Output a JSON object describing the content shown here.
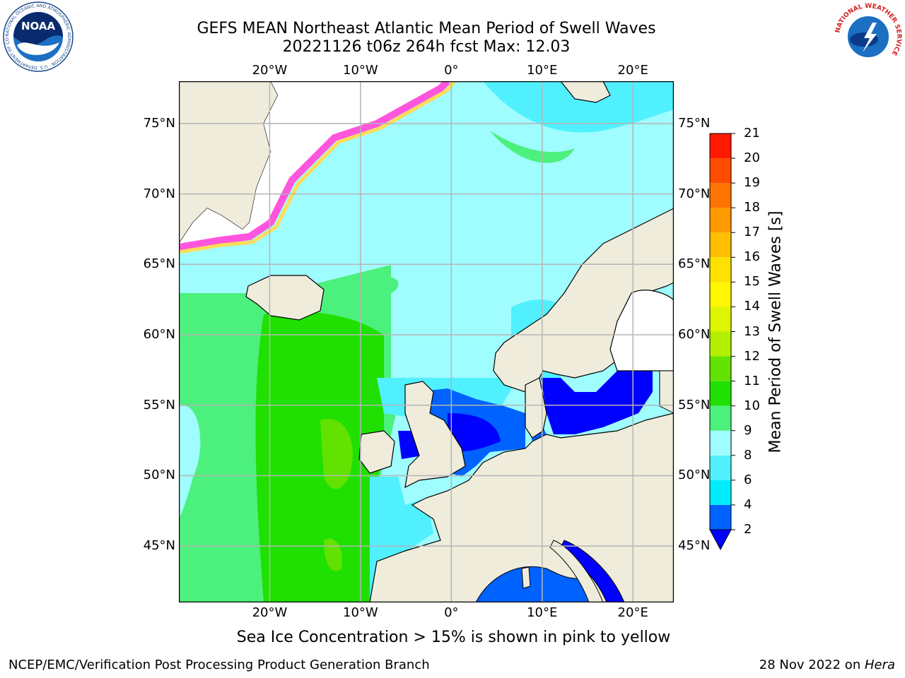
{
  "title": {
    "line1": "GEFS MEAN Northeast Atlantic Mean Period of Swell Waves",
    "line2": "20221126 t06z 264h fcst   Max: 12.03"
  },
  "logos": {
    "noaa": {
      "text": "NOAA",
      "ring_text": "NATIONAL OCEANIC AND ATMOSPHERIC ADMINISTRATION · U.S. DEPARTMENT OF COMMERCE"
    },
    "nws": {
      "ring_text": "NATIONAL WEATHER SERVICE"
    }
  },
  "map": {
    "projection": "cylindrical lat/lon",
    "lon_range": [
      -30,
      24.5
    ],
    "lat_range": [
      41,
      78
    ],
    "lon_ticks": [
      "20°W",
      "10°W",
      "0°",
      "10°E",
      "20°E"
    ],
    "lon_tick_values": [
      -20,
      -10,
      0,
      10,
      20
    ],
    "lat_ticks": [
      "75°N",
      "70°N",
      "65°N",
      "60°N",
      "55°N",
      "50°N",
      "45°N"
    ],
    "lat_tick_values": [
      75,
      70,
      65,
      60,
      55,
      50,
      45
    ],
    "colors": {
      "land": "#efecdc",
      "grid": "#b5b5b5",
      "coast": "#000000",
      "sea_ice": "#ffffff",
      "ice_edge": [
        "#ff55dd",
        "#ffaacc",
        "#ffdd55"
      ]
    }
  },
  "colorbar": {
    "title": "Mean Period of Swell Waves [s]",
    "labels": [
      "2",
      "4",
      "6",
      "8",
      "9",
      "10",
      "11",
      "12",
      "13",
      "14",
      "15",
      "16",
      "17",
      "18",
      "19",
      "20",
      "21"
    ],
    "colors": [
      "#0062ff",
      "#00ecff",
      "#50f0ff",
      "#9ffcff",
      "#4cf07c",
      "#1fe000",
      "#62e200",
      "#b2f000",
      "#ddf600",
      "#fff600",
      "#ffe100",
      "#ffbf00",
      "#ff9900",
      "#ff7300",
      "#ff4c00",
      "#ff1a00"
    ],
    "under_color": "#0000ff"
  },
  "footer": {
    "ice_note": "Sea Ice Concentration > 15% is shown in pink to yellow",
    "credit": "NCEP/EMC/Verification Post Processing Product Generation Branch",
    "date_prefix": "28 Nov 2022 on ",
    "host": "Hera"
  }
}
